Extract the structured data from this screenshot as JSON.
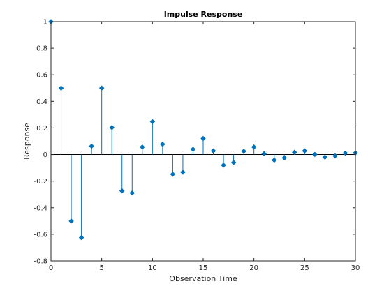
{
  "chart_data": {
    "type": "stem",
    "title": "Impulse Response",
    "xlabel": "Observation Time",
    "ylabel": "Response",
    "xlim": [
      0,
      30
    ],
    "ylim": [
      -0.8,
      1
    ],
    "xticks": [
      0,
      5,
      10,
      15,
      20,
      25,
      30
    ],
    "xtick_labels": [
      "0",
      "5",
      "10",
      "15",
      "20",
      "25",
      "30"
    ],
    "yticks": [
      -0.8,
      -0.6,
      -0.4,
      -0.2,
      0,
      0.2,
      0.4,
      0.6,
      0.8,
      1
    ],
    "ytick_labels": [
      "-0.8",
      "-0.6",
      "-0.4",
      "-0.2",
      "0",
      "0.2",
      "0.4",
      "0.6",
      "0.8",
      "1"
    ],
    "grid": false,
    "series": [
      {
        "color": "#0072BD",
        "x": [
          0,
          1,
          2,
          3,
          4,
          5,
          6,
          7,
          8,
          9,
          10,
          11,
          12,
          13,
          14,
          15,
          16,
          17,
          18,
          19,
          20,
          21,
          22,
          23,
          24,
          25,
          26,
          27,
          28,
          29,
          30
        ],
        "values": [
          1,
          0.5,
          -0.5,
          -0.625,
          0.063,
          0.5,
          0.203,
          -0.273,
          -0.289,
          0.057,
          0.248,
          0.078,
          -0.148,
          -0.133,
          0.04,
          0.121,
          0.028,
          -0.08,
          -0.06,
          0.025,
          0.057,
          0.007,
          -0.042,
          -0.025,
          0.017,
          0.028,
          0.001,
          -0.02,
          -0.01,
          0.011,
          0.012
        ]
      }
    ]
  }
}
